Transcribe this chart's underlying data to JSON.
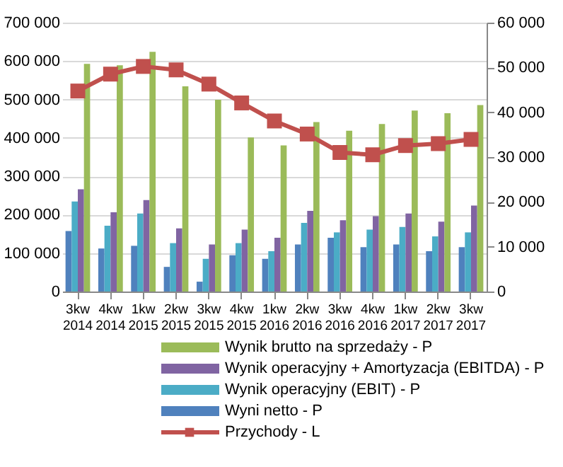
{
  "chart_data": {
    "type": "bar",
    "categories": [
      "3kw 2014",
      "4kw 2014",
      "1kw 2015",
      "2kw 2015",
      "3kw 2015",
      "4kw 2015",
      "1kw 2016",
      "2kw 2016",
      "3kw 2016",
      "4kw 2016",
      "1kw 2017",
      "2kw 2017",
      "3kw 2017"
    ],
    "series": [
      {
        "name": "Wyni netto - P",
        "color": "#4f81bd",
        "axis": "y2",
        "values": [
          13500,
          9600,
          10200,
          5500,
          2200,
          8100,
          7300,
          10500,
          12000,
          9900,
          10500,
          9000,
          9900
        ]
      },
      {
        "name": "Wynik operacyjny (EBIT) - P",
        "color": "#4bacc6",
        "axis": "y2",
        "values": [
          20100,
          14700,
          17400,
          10800,
          7300,
          10800,
          9000,
          15300,
          13200,
          13800,
          14400,
          12300,
          13200
        ]
      },
      {
        "name": "Wynik operacyjny + Amortyzacja (EBITDA) - P",
        "color": "#8064a2",
        "axis": "y2",
        "values": [
          22800,
          17700,
          20400,
          14100,
          10500,
          13800,
          12000,
          18000,
          15900,
          16800,
          17400,
          15600,
          19200
        ]
      },
      {
        "name": "Wynik brutto na sprzedaży - P",
        "color": "#9bbb59",
        "axis": "y2",
        "values": [
          50800,
          50500,
          53500,
          45800,
          42800,
          34400,
          32600,
          37800,
          35900,
          37400,
          40400,
          39800,
          41600
        ]
      },
      {
        "name": "Przychody - L",
        "color": "#c0504d",
        "type": "line",
        "marker": "square",
        "line_style": "solid",
        "values": [
          522000,
          566000,
          586000,
          577000,
          540000,
          491000,
          444000,
          410000,
          362000,
          356000,
          380000,
          385000,
          396000
        ]
      }
    ],
    "ylim": [
      0,
      700000
    ],
    "yticks": [
      {
        "value": 0,
        "label": "0"
      },
      {
        "value": 100000,
        "label": "100 000"
      },
      {
        "value": 200000,
        "label": "200 000"
      },
      {
        "value": 300000,
        "label": "300 000"
      },
      {
        "value": 400000,
        "label": "400 000"
      },
      {
        "value": 500000,
        "label": "500 000"
      },
      {
        "value": 600000,
        "label": "600 000"
      },
      {
        "value": 700000,
        "label": "700 000"
      }
    ],
    "y2lim": [
      0,
      60000
    ],
    "y2ticks": [
      {
        "value": 0,
        "label": "0"
      },
      {
        "value": 10000,
        "label": "10 000"
      },
      {
        "value": 20000,
        "label": "20 000"
      },
      {
        "value": 30000,
        "label": "30 000"
      },
      {
        "value": 40000,
        "label": "40 000"
      },
      {
        "value": 50000,
        "label": "50 000"
      },
      {
        "value": 60000,
        "label": "60 000"
      }
    ],
    "grid": "y",
    "legend": "bottom"
  }
}
